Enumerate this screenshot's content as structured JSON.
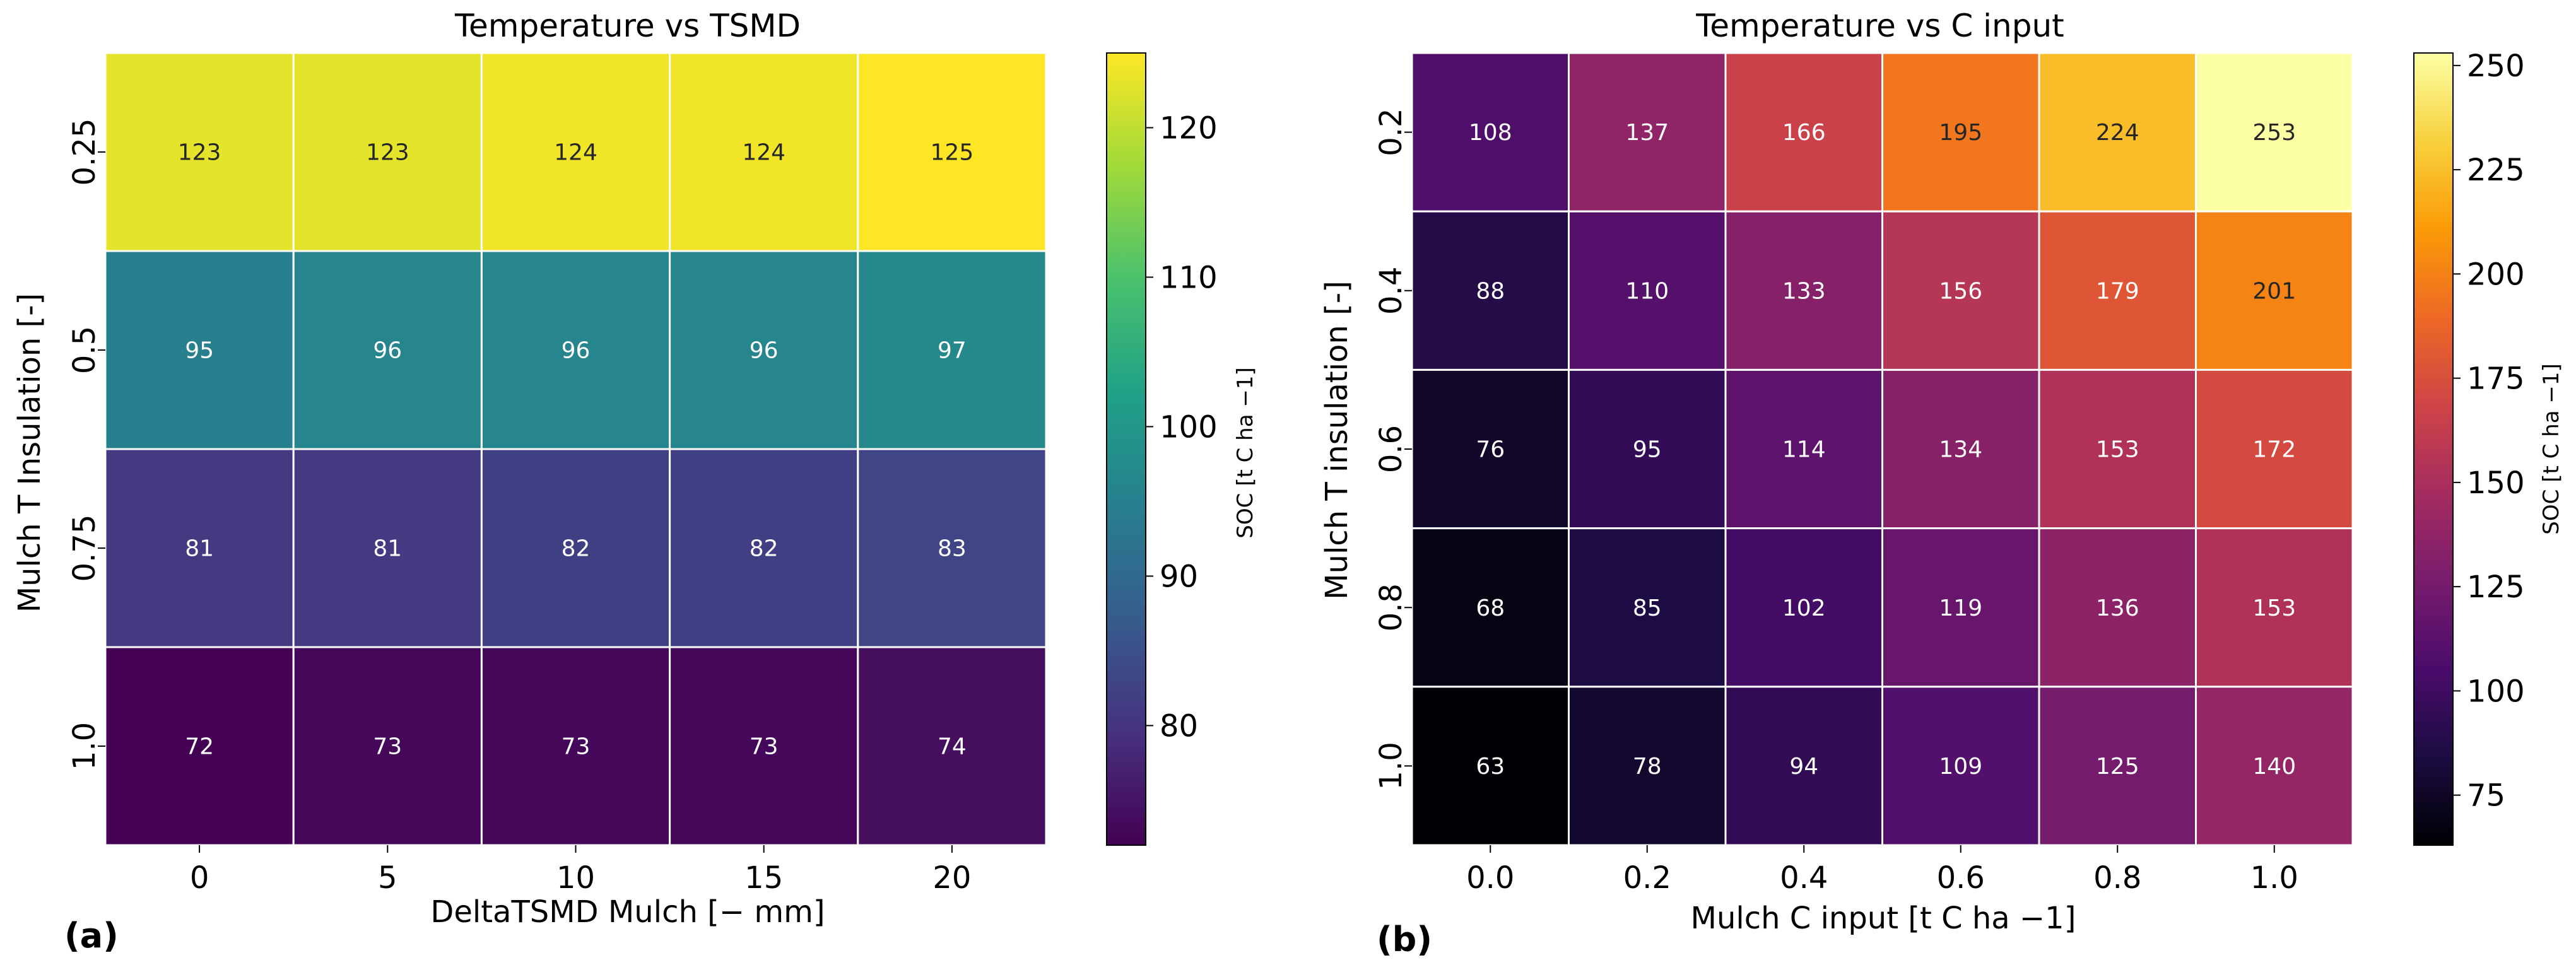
{
  "chart_data": [
    {
      "type": "heatmap",
      "panel_label": "(a)",
      "title": "Temperature vs TSMD",
      "xlabel": "DeltaTSMD Mulch [− mm]",
      "ylabel": "Mulch T Insulation [-]",
      "x_categories": [
        "0",
        "5",
        "10",
        "15",
        "20"
      ],
      "y_categories": [
        "0.25",
        "0.5",
        "0.75",
        "1.0"
      ],
      "values": [
        [
          123,
          123,
          124,
          124,
          125
        ],
        [
          95,
          96,
          96,
          96,
          97
        ],
        [
          81,
          81,
          82,
          82,
          83
        ],
        [
          72,
          73,
          73,
          73,
          74
        ]
      ],
      "colormap": "viridis",
      "colorbar": {
        "label": "SOC [t C ha −1]",
        "min": 72,
        "max": 125,
        "ticks": [
          80,
          90,
          100,
          110,
          120
        ],
        "stops": [
          "#440154",
          "#46327e",
          "#365c8d",
          "#277f8e",
          "#1fa187",
          "#4ac16d",
          "#a0da39",
          "#fde725"
        ]
      }
    },
    {
      "type": "heatmap",
      "panel_label": "(b)",
      "title": "Temperature vs C input",
      "xlabel": "Mulch C input [t C ha −1]",
      "ylabel": "Mulch T insulation [-]",
      "x_categories": [
        "0.0",
        "0.2",
        "0.4",
        "0.6",
        "0.8",
        "1.0"
      ],
      "y_categories": [
        "0.2",
        "0.4",
        "0.6",
        "0.8",
        "1.0"
      ],
      "values": [
        [
          108,
          137,
          166,
          195,
          224,
          253
        ],
        [
          88,
          110,
          133,
          156,
          179,
          201
        ],
        [
          76,
          95,
          114,
          134,
          153,
          172
        ],
        [
          68,
          85,
          102,
          119,
          136,
          153
        ],
        [
          63,
          78,
          94,
          109,
          125,
          140
        ]
      ],
      "colormap": "inferno",
      "colorbar": {
        "label": "SOC [t C ha −1]",
        "min": 63,
        "max": 253,
        "ticks": [
          75,
          100,
          125,
          150,
          175,
          200,
          225,
          250
        ],
        "stops": [
          "#000004",
          "#1b0c41",
          "#4a0c6b",
          "#781c6d",
          "#a52c60",
          "#cf4446",
          "#ed6925",
          "#fb9b06",
          "#f7d13d",
          "#fcffa4"
        ]
      }
    }
  ]
}
